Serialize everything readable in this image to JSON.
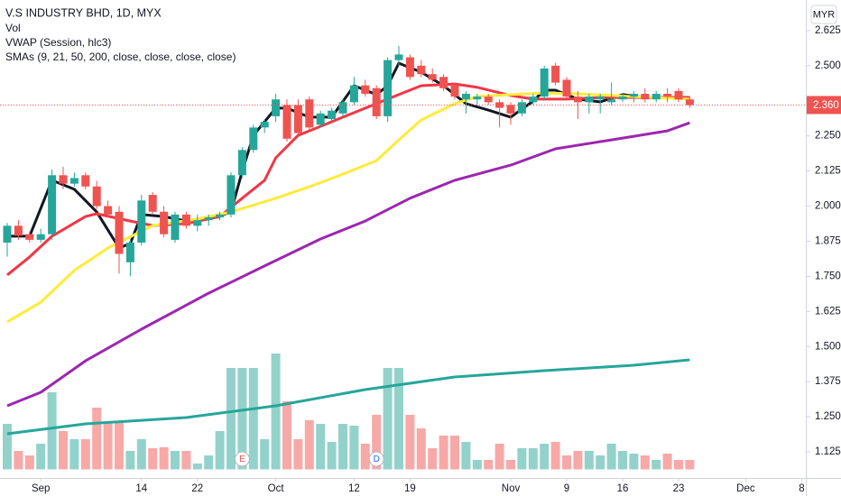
{
  "chart_data": {
    "type": "candlestick",
    "title": "V.S INDUSTRY BHD, 1D, MYX",
    "indicators": [
      "Vol",
      "VWAP (Session, hlc3)",
      "SMAs (9, 21, 50, 200, close, close, close, close)"
    ],
    "currency": "MYR",
    "up_color": "#26a69a",
    "down_color": "#ef5350",
    "volume_up_color": "#93d2cb",
    "volume_down_color": "#f7a9a7",
    "open": [
      1.87,
      1.93,
      1.9,
      1.88,
      1.9,
      2.11,
      2.08,
      2.11,
      2.07,
      2.0,
      1.98,
      1.8,
      1.87,
      2.04,
      1.98,
      1.88,
      1.97,
      1.93,
      1.95,
      1.96,
      1.97,
      2.11,
      2.2,
      2.28,
      2.32,
      2.36,
      2.36,
      2.38,
      2.29,
      2.31,
      2.33,
      2.37,
      2.43,
      2.42,
      2.32,
      2.52,
      2.53,
      2.5,
      2.47,
      2.46,
      2.43,
      2.38,
      2.38,
      2.39,
      2.37,
      2.36,
      2.33,
      2.37,
      2.39,
      2.5,
      2.45,
      2.39,
      2.37,
      2.38,
      2.37,
      2.38,
      2.39,
      2.4,
      2.38,
      2.4,
      2.41,
      2.38
    ],
    "high": [
      1.94,
      1.95,
      1.91,
      1.92,
      2.13,
      2.14,
      2.12,
      2.12,
      2.09,
      2.02,
      2.0,
      1.88,
      2.04,
      2.05,
      2.0,
      1.98,
      1.98,
      1.97,
      1.97,
      1.98,
      2.12,
      2.21,
      2.29,
      2.31,
      2.4,
      2.38,
      2.38,
      2.39,
      2.34,
      2.35,
      2.38,
      2.46,
      2.45,
      2.43,
      2.53,
      2.57,
      2.54,
      2.52,
      2.49,
      2.47,
      2.44,
      2.41,
      2.4,
      2.4,
      2.38,
      2.37,
      2.38,
      2.4,
      2.5,
      2.51,
      2.46,
      2.41,
      2.4,
      2.4,
      2.44,
      2.4,
      2.41,
      2.42,
      2.41,
      2.42,
      2.42,
      2.39
    ],
    "low": [
      1.82,
      1.88,
      1.87,
      1.87,
      1.88,
      2.06,
      2.07,
      2.06,
      1.99,
      1.96,
      1.76,
      1.75,
      1.86,
      1.97,
      1.89,
      1.87,
      1.92,
      1.91,
      1.93,
      1.95,
      1.96,
      2.1,
      2.19,
      2.26,
      2.3,
      2.23,
      2.25,
      2.27,
      2.28,
      2.3,
      2.32,
      2.36,
      2.39,
      2.31,
      2.3,
      2.5,
      2.45,
      2.46,
      2.44,
      2.41,
      2.38,
      2.33,
      2.36,
      2.36,
      2.28,
      2.29,
      2.32,
      2.36,
      2.38,
      2.43,
      2.38,
      2.31,
      2.33,
      2.33,
      2.36,
      2.37,
      2.37,
      2.37,
      2.37,
      2.37,
      2.37,
      2.35
    ],
    "close": [
      1.93,
      1.895,
      1.88,
      1.9,
      2.11,
      2.08,
      2.1,
      2.07,
      2.0,
      1.97,
      1.83,
      1.87,
      2.02,
      1.98,
      1.9,
      1.97,
      1.93,
      1.95,
      1.96,
      1.97,
      2.11,
      2.2,
      2.28,
      2.3,
      2.38,
      2.24,
      2.26,
      2.28,
      2.33,
      2.34,
      2.37,
      2.43,
      2.4,
      2.32,
      2.52,
      2.54,
      2.46,
      2.47,
      2.45,
      2.42,
      2.39,
      2.4,
      2.39,
      2.37,
      2.35,
      2.33,
      2.37,
      2.39,
      2.49,
      2.44,
      2.39,
      2.37,
      2.39,
      2.39,
      2.38,
      2.39,
      2.4,
      2.38,
      2.4,
      2.39,
      2.38,
      2.36
    ],
    "volume": [
      500,
      200,
      150,
      280,
      850,
      420,
      330,
      330,
      680,
      520,
      520,
      200,
      330,
      230,
      240,
      200,
      200,
      60,
      150,
      420,
      1120,
      1120,
      1120,
      330,
      1280,
      750,
      330,
      540,
      500,
      300,
      500,
      480,
      280,
      600,
      1120,
      1120,
      600,
      450,
      230,
      370,
      370,
      300,
      100,
      100,
      280,
      100,
      230,
      230,
      280,
      300,
      150,
      200,
      200,
      150,
      280,
      200,
      170,
      150,
      100,
      170,
      100,
      100
    ],
    "volume_ma": {
      "color": "#26a69a",
      "x": [
        0,
        7,
        16,
        24,
        32,
        40,
        48,
        56,
        61
      ],
      "values": [
        390,
        500,
        570,
        700,
        880,
        1020,
        1090,
        1150,
        1210
      ]
    },
    "lines": [
      {
        "color": "#131722",
        "x": [
          0,
          2,
          4,
          6,
          8,
          10,
          11,
          12,
          14,
          16,
          18,
          20,
          21,
          22,
          24,
          25,
          27,
          29,
          31,
          32,
          33,
          34,
          35,
          37,
          39,
          41,
          43,
          45,
          47,
          48,
          49,
          51,
          53,
          55,
          57,
          61
        ],
        "values": [
          1.893,
          1.893,
          2.092,
          2.06,
          1.979,
          1.851,
          1.867,
          1.97,
          1.963,
          1.947,
          1.954,
          1.979,
          2.124,
          2.252,
          2.349,
          2.349,
          2.317,
          2.317,
          2.429,
          2.413,
          2.397,
          2.429,
          2.509,
          2.477,
          2.429,
          2.365,
          2.342,
          2.317,
          2.374,
          2.413,
          2.413,
          2.381,
          2.371,
          2.397,
          2.387,
          2.387
        ]
      },
      {
        "color": "#f23645",
        "x": [
          0,
          2,
          4,
          7,
          8,
          11,
          13,
          16,
          19,
          21,
          23,
          24,
          26,
          28,
          30,
          32,
          35,
          37,
          40,
          42,
          45,
          47,
          50,
          53,
          56,
          61
        ],
        "values": [
          1.755,
          1.819,
          1.893,
          1.963,
          1.973,
          1.947,
          1.931,
          1.938,
          1.963,
          2.028,
          2.092,
          2.172,
          2.252,
          2.284,
          2.317,
          2.349,
          2.397,
          2.429,
          2.435,
          2.423,
          2.394,
          2.381,
          2.381,
          2.387,
          2.387,
          2.387
        ]
      },
      {
        "color": "#ffeb3b",
        "x": [
          0,
          3,
          6,
          9,
          13,
          17,
          20,
          24,
          27,
          30,
          33,
          35,
          37,
          40,
          42,
          45,
          48,
          51,
          56,
          61
        ],
        "values": [
          1.588,
          1.658,
          1.771,
          1.851,
          1.931,
          1.954,
          1.979,
          2.028,
          2.069,
          2.114,
          2.162,
          2.236,
          2.307,
          2.365,
          2.39,
          2.397,
          2.403,
          2.4,
          2.39,
          2.381
        ]
      },
      {
        "color": "#9c27b0",
        "x": [
          0,
          3,
          7,
          12,
          18,
          23,
          28,
          32,
          36,
          40,
          45,
          49,
          54,
          59,
          61
        ],
        "values": [
          1.289,
          1.337,
          1.449,
          1.562,
          1.69,
          1.787,
          1.883,
          1.947,
          2.028,
          2.092,
          2.146,
          2.204,
          2.236,
          2.268,
          2.297
        ]
      }
    ],
    "events": [
      {
        "x": 21,
        "label": "E"
      },
      {
        "x": 33,
        "label": "D"
      }
    ],
    "last_price": {
      "value": 2.36,
      "label": "2.360"
    },
    "xlim": [
      -0.645,
      71.37
    ],
    "ylim": [
      1.032,
      2.734
    ],
    "volume_ylim": [
      0,
      1400
    ],
    "xticks": [
      {
        "value": 3,
        "label": "Sep"
      },
      {
        "value": 12,
        "label": "14"
      },
      {
        "value": 17,
        "label": "22"
      },
      {
        "value": 24,
        "label": "Oct"
      },
      {
        "value": 31,
        "label": "12"
      },
      {
        "value": 36,
        "label": "19"
      },
      {
        "value": 45,
        "label": "Nov"
      },
      {
        "value": 50,
        "label": "9"
      },
      {
        "value": 55,
        "label": "16"
      },
      {
        "value": 60,
        "label": "23"
      },
      {
        "value": 66,
        "label": "Dec"
      },
      {
        "value": 71,
        "label": "8"
      }
    ],
    "yticks": [
      2.625,
      {
        "value": 2.5,
        "label": "2.500"
      },
      2.375,
      {
        "value": 2.25,
        "label": "2.250"
      },
      2.125,
      {
        "value": 2.0,
        "label": "2.000"
      },
      1.875,
      {
        "value": 1.75,
        "label": "1.750"
      },
      1.625,
      {
        "value": 1.5,
        "label": "1.500"
      },
      1.375,
      {
        "value": 1.25,
        "label": "1.250"
      },
      1.125
    ]
  }
}
